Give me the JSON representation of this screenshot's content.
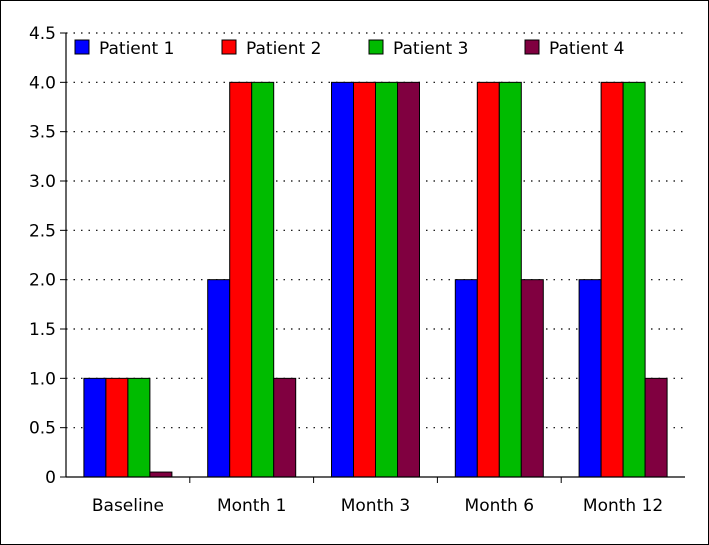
{
  "chart_data": {
    "type": "bar",
    "categories": [
      "Baseline",
      "Month 1",
      "Month 3",
      "Month 6",
      "Month 12"
    ],
    "series": [
      {
        "name": "Patient 1",
        "color": "#0000ff",
        "values": [
          1,
          2,
          4,
          2,
          2
        ]
      },
      {
        "name": "Patient 2",
        "color": "#ff0000",
        "values": [
          1,
          4,
          4,
          4,
          4
        ]
      },
      {
        "name": "Patient 3",
        "color": "#00bb00",
        "values": [
          1,
          4,
          4,
          4,
          4
        ]
      },
      {
        "name": "Patient 4",
        "color": "#800040",
        "values": [
          0.05,
          1,
          4,
          2,
          1
        ]
      }
    ],
    "ylim": [
      0,
      4.5
    ],
    "yticks": [
      "0",
      "0.5",
      "1.0",
      "1.5",
      "2.0",
      "2.5",
      "3.0",
      "3.5",
      "4.0",
      "4.5"
    ],
    "title": "",
    "xlabel": "",
    "ylabel": "",
    "grid": "horizontal-dotted",
    "legend_position": "top"
  }
}
